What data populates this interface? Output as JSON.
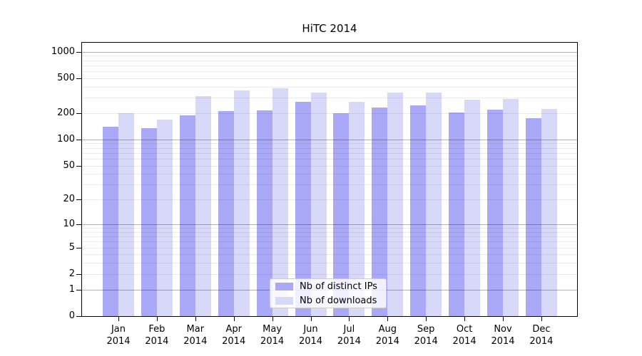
{
  "chart_data": {
    "type": "bar",
    "title": "HiTC 2014",
    "x_months": [
      "Jan",
      "Feb",
      "Mar",
      "Apr",
      "May",
      "Jun",
      "Jul",
      "Aug",
      "Sep",
      "Oct",
      "Nov",
      "Dec"
    ],
    "x_year": "2014",
    "series": [
      {
        "name": "Nb of distinct IPs",
        "color": "#a9a9f7",
        "values": [
          140,
          135,
          190,
          210,
          215,
          270,
          200,
          230,
          245,
          205,
          220,
          175
        ]
      },
      {
        "name": "Nb of downloads",
        "color": "#d8d8f8",
        "values": [
          200,
          170,
          310,
          360,
          385,
          345,
          270,
          340,
          345,
          285,
          290,
          225
        ]
      }
    ],
    "yscale": "log1p",
    "ylim": [
      0,
      1280
    ],
    "ytick_labels": [
      "1000",
      "500",
      "200",
      "100",
      "50",
      "20",
      "10",
      "5",
      "2",
      "1",
      "0"
    ],
    "ytick_values": [
      1000,
      500,
      200,
      100,
      50,
      20,
      10,
      5,
      2,
      1,
      0
    ],
    "grid": {
      "major_values": [
        1,
        10,
        100,
        1000
      ],
      "minor_values": [
        2,
        3,
        4,
        5,
        6,
        7,
        8,
        9,
        20,
        30,
        40,
        50,
        60,
        70,
        80,
        90,
        200,
        300,
        400,
        500,
        600,
        700,
        800,
        900
      ],
      "major_color": "rgba(0,0,0,0.30)",
      "minor_color": "rgba(0,0,0,0.08)"
    },
    "legend_position": "lower center",
    "spine_color": "#000000",
    "background": "#ffffff"
  }
}
